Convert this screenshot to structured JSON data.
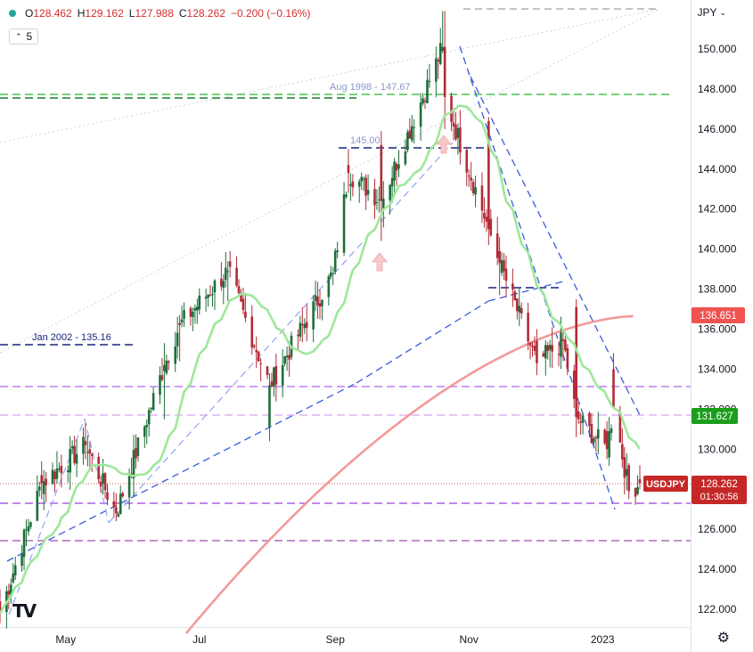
{
  "header": {
    "symbol_dot_color": "#26a69a",
    "ohlc": [
      {
        "key": "O",
        "value": "128.462"
      },
      {
        "key": "H",
        "value": "129.162"
      },
      {
        "key": "L",
        "value": "127.988"
      },
      {
        "key": "C",
        "value": "128.262"
      }
    ],
    "change": "−0.200 (−0.16%)",
    "interval": "5",
    "currency": "JPY"
  },
  "axis": {
    "y_ticks": [
      "150.000",
      "148.000",
      "146.000",
      "144.000",
      "142.000",
      "140.000",
      "138.000",
      "136.000",
      "134.000",
      "132.000",
      "130.000",
      "128.000",
      "126.000",
      "124.000",
      "122.000"
    ],
    "x_ticks": [
      "May",
      "Jul",
      "Sep",
      "Nov",
      "2023"
    ]
  },
  "price_tags": {
    "ma200": {
      "text": "136.651",
      "color": "#ef5350"
    },
    "ma20": {
      "text": "131.627",
      "color": "#1b9e1b"
    },
    "last_symbol": {
      "text": "USDJPY",
      "color": "#c62828"
    },
    "last_price": {
      "text": "128.262",
      "color": "#c62828"
    },
    "countdown": {
      "text": "01:30:56",
      "color": "#c62828"
    }
  },
  "annotations": {
    "aug1998": "Aug 1998 - 147.67",
    "level145": "145.00",
    "jan2002": "Jan 2002 - 135.16"
  },
  "colors": {
    "up": "#1e6e3a",
    "down": "#b22b37",
    "ma_fast": "#9ee79a",
    "ma_slow": "#f29a9a",
    "trend_blue": "#3b5bdb",
    "purple": "#b565e6",
    "navy": "#1a237e",
    "green_dash": "#1b9e1b"
  },
  "chart_data": {
    "type": "candlestick",
    "symbol": "USDJPY",
    "y_axis_label": "JPY",
    "ylim": [
      121.0,
      152.3
    ],
    "x_range": [
      "2022-04-01",
      "2023-01-18"
    ],
    "ohlc_sample": [
      [
        "2022-04-01",
        122.4,
        123.0,
        121.3,
        121.8
      ],
      [
        "2022-04-20",
        128.7,
        129.4,
        127.5,
        128.3
      ],
      [
        "2022-05-10",
        130.4,
        131.3,
        129.5,
        130.2
      ],
      [
        "2022-05-24",
        127.1,
        127.8,
        126.4,
        126.8
      ],
      [
        "2022-06-15",
        133.9,
        135.3,
        131.5,
        134.2
      ],
      [
        "2022-06-22",
        136.3,
        136.7,
        134.4,
        136.2
      ],
      [
        "2022-07-14",
        138.9,
        139.4,
        137.4,
        138.9
      ],
      [
        "2022-08-02",
        131.1,
        133.8,
        130.4,
        133.2
      ],
      [
        "2022-08-31",
        138.8,
        139.1,
        138.2,
        138.8
      ],
      [
        "2022-09-07",
        144.2,
        145.0,
        142.8,
        143.8
      ],
      [
        "2022-09-22",
        145.2,
        145.9,
        140.4,
        142.4
      ],
      [
        "2022-10-20",
        149.9,
        151.9,
        149.8,
        150.1
      ],
      [
        "2022-10-21",
        150.1,
        151.9,
        146.0,
        147.6
      ],
      [
        "2022-11-10",
        146.4,
        146.6,
        140.2,
        141.0
      ],
      [
        "2022-11-15",
        139.9,
        140.6,
        137.7,
        139.3
      ],
      [
        "2022-12-02",
        135.4,
        136.0,
        133.7,
        134.3
      ],
      [
        "2022-12-14",
        135.5,
        135.9,
        134.4,
        135.4
      ],
      [
        "2022-12-20",
        137.1,
        137.5,
        130.6,
        131.6
      ],
      [
        "2023-01-03",
        130.9,
        131.4,
        129.5,
        130.0
      ],
      [
        "2023-01-06",
        134.0,
        134.8,
        133.5,
        132.1
      ],
      [
        "2023-01-13",
        129.2,
        129.3,
        127.5,
        127.9
      ],
      [
        "2023-01-18",
        128.5,
        129.2,
        128.0,
        128.3
      ]
    ],
    "moving_averages": [
      {
        "name": "fast MA",
        "last": 131.627
      },
      {
        "name": "slow MA",
        "last": 136.651
      }
    ],
    "horizontal_levels": [
      147.67,
      145.0,
      138.0,
      135.16,
      133.1,
      131.6,
      127.3,
      125.4
    ],
    "last_price": 128.262
  }
}
